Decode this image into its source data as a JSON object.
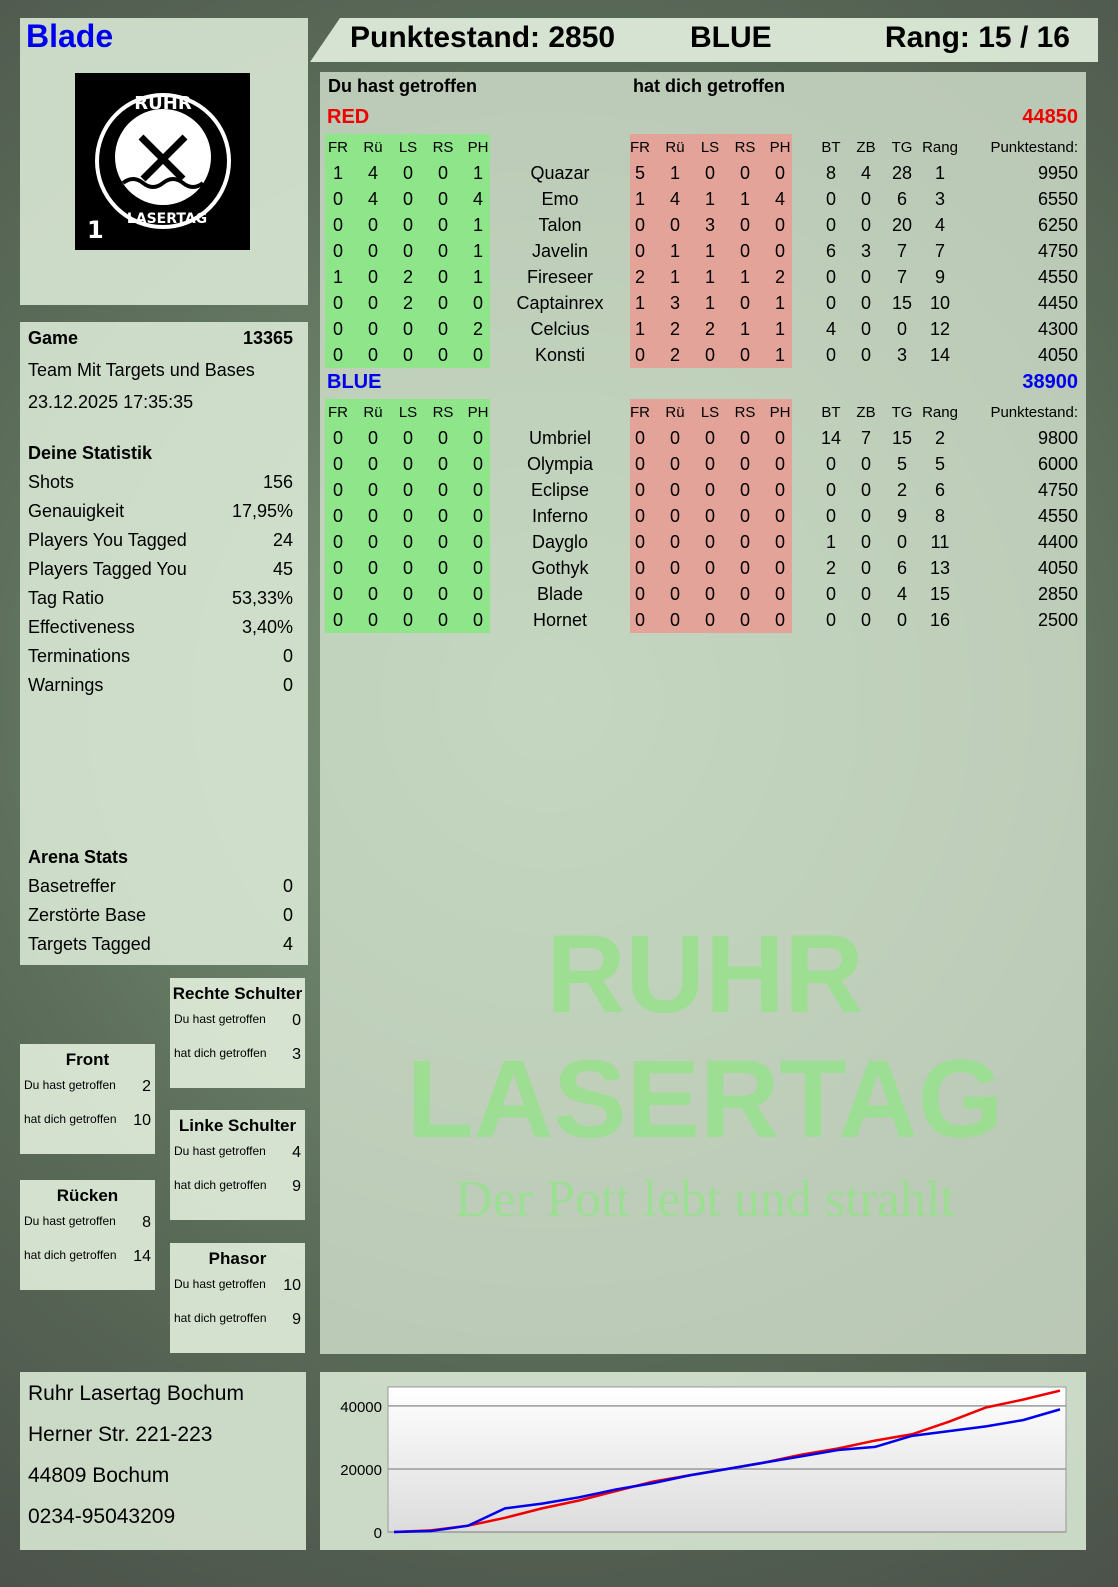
{
  "player": {
    "name": "Blade",
    "logo_text": "RUHR LASERTAG",
    "logo_number": "1"
  },
  "header": {
    "score_label": "Punktestand:",
    "score": "2850",
    "team": "BLUE",
    "rank_label": "Rang:",
    "rank": "15 / 16"
  },
  "game": {
    "label": "Game",
    "number": "13365",
    "mode": "Team Mit Targets und Bases",
    "datetime": "23.12.2025 17:35:35"
  },
  "stats": {
    "title": "Deine Statistik",
    "items": [
      {
        "label": "Shots",
        "value": "156"
      },
      {
        "label": "Genauigkeit",
        "value": "17,95%"
      },
      {
        "label": "Players You Tagged",
        "value": "24"
      },
      {
        "label": "Players Tagged You",
        "value": "45"
      },
      {
        "label": "Tag Ratio",
        "value": "53,33%"
      },
      {
        "label": "Effectiveness",
        "value": "3,40%"
      },
      {
        "label": "Terminations",
        "value": "0"
      },
      {
        "label": "Warnings",
        "value": "0"
      }
    ]
  },
  "arena": {
    "title": "Arena Stats",
    "items": [
      {
        "label": "Basetreffer",
        "value": "0"
      },
      {
        "label": "Zerstörte Base",
        "value": "0"
      },
      {
        "label": "Targets Tagged",
        "value": "4"
      }
    ]
  },
  "zones": [
    {
      "name": "Rechte Schulter",
      "hit_label": "Du hast getroffen",
      "hit": "0",
      "got_label": "hat dich getroffen",
      "got": "3"
    },
    {
      "name": "Front",
      "hit_label": "Du hast getroffen",
      "hit": "2",
      "got_label": "hat dich getroffen",
      "got": "10"
    },
    {
      "name": "Linke Schulter",
      "hit_label": "Du hast getroffen",
      "hit": "4",
      "got_label": "hat dich getroffen",
      "got": "9"
    },
    {
      "name": "Rücken",
      "hit_label": "Du hast getroffen",
      "hit": "8",
      "got_label": "hat dich getroffen",
      "got": "14"
    },
    {
      "name": "Phasor",
      "hit_label": "Du hast getroffen",
      "hit": "10",
      "got_label": "hat dich getroffen",
      "got": "9"
    }
  ],
  "address": [
    "Ruhr Lasertag Bochum",
    "Herner Str. 221-223",
    "44809 Bochum",
    "0234-95043209"
  ],
  "table": {
    "you_hit_label": "Du hast getroffen",
    "hit_you_label": "hat dich getroffen",
    "zone_cols": [
      "FR",
      "Rü",
      "LS",
      "RS",
      "PH"
    ],
    "stat_cols": [
      "BT",
      "ZB",
      "TG",
      "Rang"
    ],
    "score_col": "Punktestand:",
    "colors": {
      "hit_bg": "#8ee58a",
      "got_bg": "#e3a398",
      "red": "#ee0000",
      "blue": "#0000ee"
    },
    "teams": [
      {
        "name": "RED",
        "total": "44850",
        "color": "#ee0000",
        "players": [
          {
            "name": "Quazar",
            "hit": [
              1,
              4,
              0,
              0,
              1
            ],
            "got": [
              5,
              1,
              0,
              0,
              0
            ],
            "stats": [
              8,
              4,
              28,
              1
            ],
            "score": "9950"
          },
          {
            "name": "Emo",
            "hit": [
              0,
              4,
              0,
              0,
              4
            ],
            "got": [
              1,
              4,
              1,
              1,
              4
            ],
            "stats": [
              0,
              0,
              6,
              3
            ],
            "score": "6550"
          },
          {
            "name": "Talon",
            "hit": [
              0,
              0,
              0,
              0,
              1
            ],
            "got": [
              0,
              0,
              3,
              0,
              0
            ],
            "stats": [
              0,
              0,
              20,
              4
            ],
            "score": "6250"
          },
          {
            "name": "Javelin",
            "hit": [
              0,
              0,
              0,
              0,
              1
            ],
            "got": [
              0,
              1,
              1,
              0,
              0
            ],
            "stats": [
              6,
              3,
              7,
              7
            ],
            "score": "4750"
          },
          {
            "name": "Fireseer",
            "hit": [
              1,
              0,
              2,
              0,
              1
            ],
            "got": [
              2,
              1,
              1,
              1,
              2
            ],
            "stats": [
              0,
              0,
              7,
              9
            ],
            "score": "4550"
          },
          {
            "name": "Captainrex",
            "hit": [
              0,
              0,
              2,
              0,
              0
            ],
            "got": [
              1,
              3,
              1,
              0,
              1
            ],
            "stats": [
              0,
              0,
              15,
              10
            ],
            "score": "4450"
          },
          {
            "name": "Celcius",
            "hit": [
              0,
              0,
              0,
              0,
              2
            ],
            "got": [
              1,
              2,
              2,
              1,
              1
            ],
            "stats": [
              4,
              0,
              0,
              12
            ],
            "score": "4300"
          },
          {
            "name": "Konsti",
            "hit": [
              0,
              0,
              0,
              0,
              0
            ],
            "got": [
              0,
              2,
              0,
              0,
              1
            ],
            "stats": [
              0,
              0,
              3,
              14
            ],
            "score": "4050"
          }
        ]
      },
      {
        "name": "BLUE",
        "total": "38900",
        "color": "#0000ee",
        "players": [
          {
            "name": "Umbriel",
            "hit": [
              0,
              0,
              0,
              0,
              0
            ],
            "got": [
              0,
              0,
              0,
              0,
              0
            ],
            "stats": [
              14,
              7,
              15,
              2
            ],
            "score": "9800"
          },
          {
            "name": "Olympia",
            "hit": [
              0,
              0,
              0,
              0,
              0
            ],
            "got": [
              0,
              0,
              0,
              0,
              0
            ],
            "stats": [
              0,
              0,
              5,
              5
            ],
            "score": "6000"
          },
          {
            "name": "Eclipse",
            "hit": [
              0,
              0,
              0,
              0,
              0
            ],
            "got": [
              0,
              0,
              0,
              0,
              0
            ],
            "stats": [
              0,
              0,
              2,
              6
            ],
            "score": "4750"
          },
          {
            "name": "Inferno",
            "hit": [
              0,
              0,
              0,
              0,
              0
            ],
            "got": [
              0,
              0,
              0,
              0,
              0
            ],
            "stats": [
              0,
              0,
              9,
              8
            ],
            "score": "4550"
          },
          {
            "name": "Dayglo",
            "hit": [
              0,
              0,
              0,
              0,
              0
            ],
            "got": [
              0,
              0,
              0,
              0,
              0
            ],
            "stats": [
              1,
              0,
              0,
              11
            ],
            "score": "4400"
          },
          {
            "name": "Gothyk",
            "hit": [
              0,
              0,
              0,
              0,
              0
            ],
            "got": [
              0,
              0,
              0,
              0,
              0
            ],
            "stats": [
              2,
              0,
              6,
              13
            ],
            "score": "4050"
          },
          {
            "name": "Blade",
            "hit": [
              0,
              0,
              0,
              0,
              0
            ],
            "got": [
              0,
              0,
              0,
              0,
              0
            ],
            "stats": [
              0,
              0,
              4,
              15
            ],
            "score": "2850"
          },
          {
            "name": "Hornet",
            "hit": [
              0,
              0,
              0,
              0,
              0
            ],
            "got": [
              0,
              0,
              0,
              0,
              0
            ],
            "stats": [
              0,
              0,
              0,
              16
            ],
            "score": "2500"
          }
        ]
      }
    ]
  },
  "watermark": {
    "line1": "RUHR",
    "line2": "LASERTAG",
    "slogan": "Der Pott lebt und strahlt"
  },
  "chart_data": {
    "type": "line",
    "title": "",
    "xlabel": "",
    "ylabel": "",
    "ylim": [
      0,
      46000
    ],
    "yticks": [
      "0",
      "20000",
      "40000"
    ],
    "grid": true,
    "legend": "none",
    "x": [
      0,
      1,
      2,
      3,
      4,
      5,
      6,
      7,
      8,
      9,
      10,
      11,
      12,
      13,
      14,
      15,
      16,
      17,
      18
    ],
    "series": [
      {
        "color": "#ee0000",
        "values": [
          0,
          500,
          2000,
          4500,
          7500,
          10000,
          13000,
          16000,
          18000,
          20000,
          22000,
          24500,
          26500,
          29000,
          31000,
          35000,
          39500,
          42000,
          44850
        ]
      },
      {
        "color": "#0000ee",
        "values": [
          0,
          300,
          2000,
          7500,
          9000,
          11000,
          13500,
          15500,
          18000,
          20000,
          22000,
          24000,
          26000,
          27000,
          30500,
          32000,
          33500,
          35500,
          38900
        ]
      }
    ]
  }
}
